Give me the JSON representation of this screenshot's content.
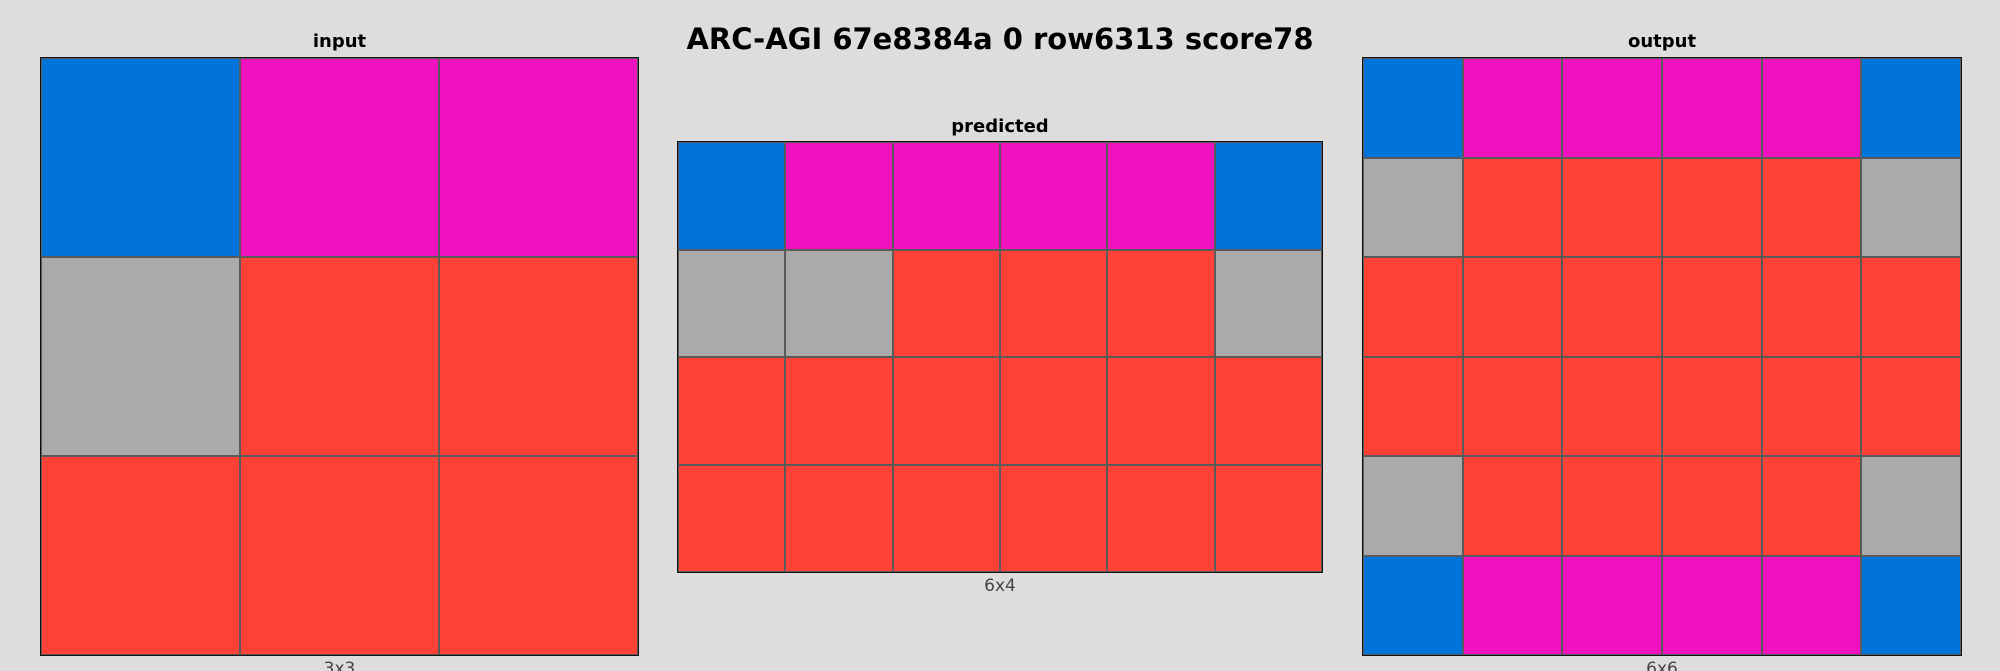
{
  "title": "ARC-AGI 67e8384a 0 row6313 score78",
  "palette": {
    "blue": "#0074d9",
    "magenta": "#f012be",
    "grey": "#aaaaaa",
    "red": "#ff4136"
  },
  "panels": {
    "input": {
      "title": "input",
      "caption": "3x3",
      "cols": 3,
      "rows": 3,
      "cells": [
        [
          "blue",
          "magenta",
          "magenta"
        ],
        [
          "grey",
          "red",
          "red"
        ],
        [
          "red",
          "red",
          "red"
        ]
      ]
    },
    "predicted": {
      "title": "predicted",
      "caption": "6x4",
      "cols": 6,
      "rows": 4,
      "cells": [
        [
          "blue",
          "magenta",
          "magenta",
          "magenta",
          "magenta",
          "blue"
        ],
        [
          "grey",
          "grey",
          "red",
          "red",
          "red",
          "grey"
        ],
        [
          "red",
          "red",
          "red",
          "red",
          "red",
          "red"
        ],
        [
          "red",
          "red",
          "red",
          "red",
          "red",
          "red"
        ]
      ]
    },
    "output": {
      "title": "output",
      "caption": "6x6",
      "cols": 6,
      "rows": 6,
      "cells": [
        [
          "blue",
          "magenta",
          "magenta",
          "magenta",
          "magenta",
          "blue"
        ],
        [
          "grey",
          "red",
          "red",
          "red",
          "red",
          "grey"
        ],
        [
          "red",
          "red",
          "red",
          "red",
          "red",
          "red"
        ],
        [
          "red",
          "red",
          "red",
          "red",
          "red",
          "red"
        ],
        [
          "grey",
          "red",
          "red",
          "red",
          "red",
          "grey"
        ],
        [
          "blue",
          "magenta",
          "magenta",
          "magenta",
          "magenta",
          "blue"
        ]
      ]
    }
  }
}
